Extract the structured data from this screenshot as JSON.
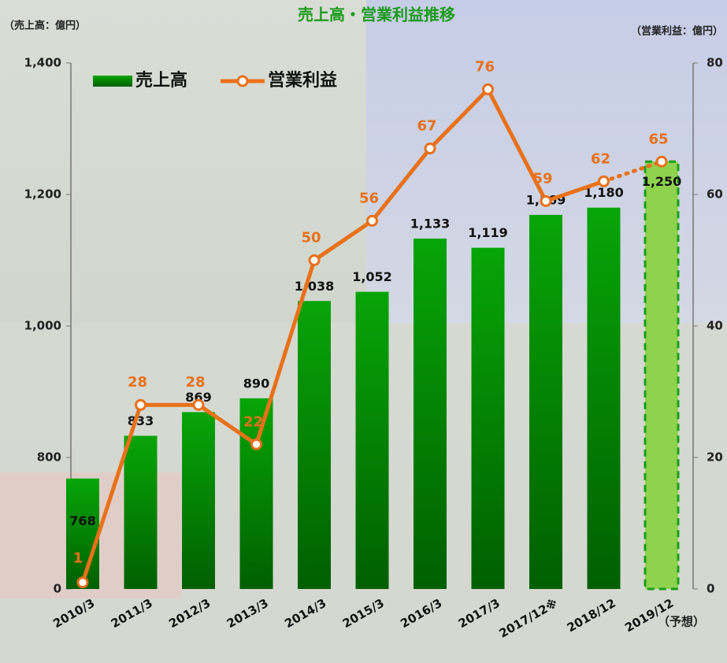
{
  "chart_data": {
    "type": "bar_line",
    "title": "売上高・営業利益推移",
    "y_label": "（売上高：億円）",
    "y2_label": "（営業利益：億円）",
    "categories": [
      "2010/3",
      "2011/3",
      "2012/3",
      "2013/3",
      "2014/3",
      "2015/3",
      "2016/3",
      "2017/3",
      "2017/12※",
      "2018/12",
      "2019/12"
    ],
    "forecast": [
      false,
      false,
      false,
      false,
      false,
      false,
      false,
      false,
      false,
      false,
      true
    ],
    "annotation": "（予想）",
    "series": [
      {
        "name": "売上高",
        "type": "bar",
        "color": "#059e05",
        "forecast_color": "#8ed24e",
        "values": [
          768,
          833,
          869,
          890,
          1038,
          1052,
          1133,
          1119,
          1169,
          1180,
          1250
        ],
        "value_labels": [
          "768",
          "833",
          "869",
          "890",
          "1,038",
          "1,052",
          "1,133",
          "1,119",
          "1,169",
          "1,180",
          "1,250"
        ]
      },
      {
        "name": "営業利益",
        "type": "line",
        "axis": "y2",
        "color": "#e8711a",
        "values": [
          1,
          28,
          28,
          22,
          50,
          56,
          67,
          76,
          59,
          62,
          65
        ]
      }
    ],
    "ylim": [
      0,
      1400
    ],
    "axis_break": [
      0,
      600
    ],
    "yticks": [
      0,
      800,
      {
        "value": 1000,
        "label": "1,000"
      },
      {
        "value": 1200,
        "label": "1,200"
      },
      {
        "value": 1400,
        "label": "1,400"
      }
    ],
    "y2lim": [
      0,
      80
    ],
    "y2ticks": [
      0,
      20,
      40,
      60,
      80
    ],
    "legend": "top-left"
  }
}
